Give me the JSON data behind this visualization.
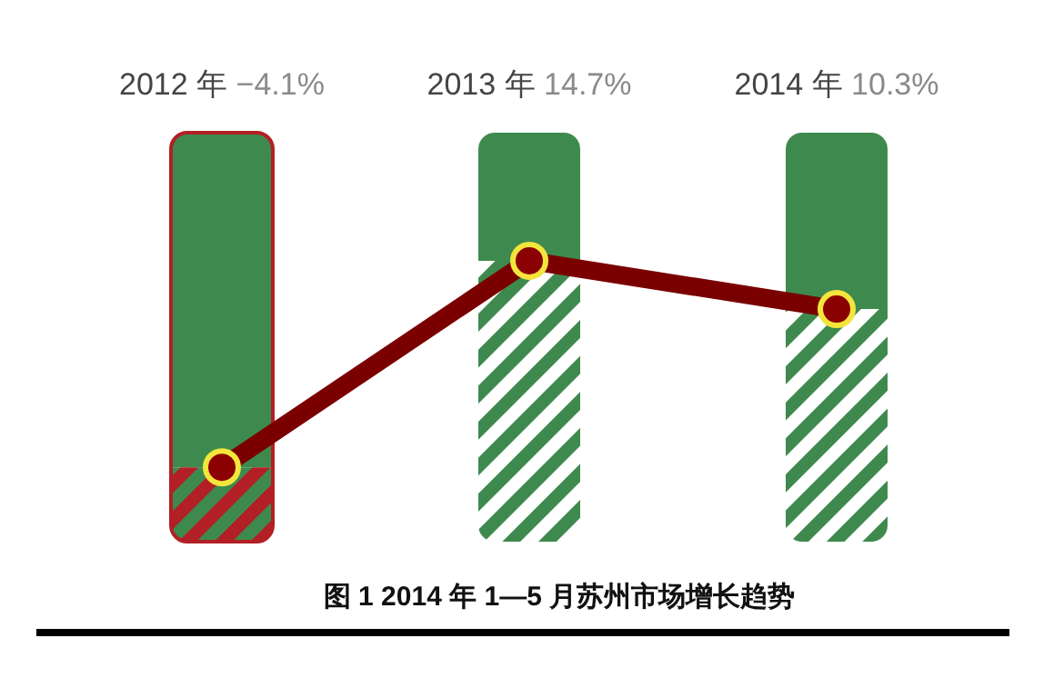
{
  "chart_data": {
    "type": "line",
    "categories": [
      "2012 年",
      "2013 年",
      "2014 年"
    ],
    "series": [
      {
        "color": "#7a0000",
        "values": [
          -4.1,
          14.7,
          10.3
        ],
        "value_labels": [
          "−4.1%",
          "14.7%",
          "10.3%"
        ]
      }
    ],
    "colors": [
      "#b21f24",
      "#3e8a4e",
      "#3e8a4e"
    ],
    "marker": "circle",
    "annotations": [
      "图 1  2014 年 1—5 月苏州市场增长趋势"
    ]
  }
}
